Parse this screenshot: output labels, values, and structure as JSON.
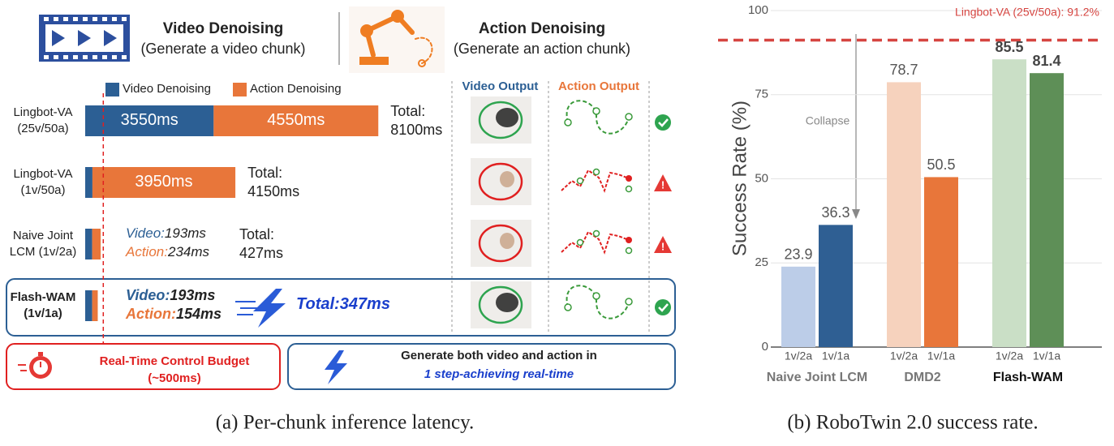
{
  "chart_data": [
    {
      "type": "latency",
      "title": "(a) Per-chunk inference latency.",
      "headers": [
        {
          "title": "Video Denoising",
          "subtitle": "(Generate a video chunk)"
        },
        {
          "title": "Action Denoising",
          "subtitle": "(Generate an action chunk)"
        }
      ],
      "categories": [
        "Lingbot-VA (25v/50a)",
        "Lingbot-VA (1v/50a)",
        "Naive Joint LCM (1v/2a)",
        "Flash-WAM (1v/1a)"
      ],
      "series": [
        {
          "name": "Video Denoising",
          "color": "#2c5f94",
          "inline_label": "Video:",
          "values": [
            3550,
            200,
            193,
            193
          ],
          "value_labels": [
            "3550ms",
            null,
            "193ms",
            "193ms"
          ]
        },
        {
          "name": "Action Denoising",
          "color": "#e8763a",
          "inline_label": "Action:",
          "values": [
            4550,
            3950,
            234,
            154
          ],
          "value_labels": [
            "4550ms",
            "3950ms",
            "234ms",
            "154ms"
          ]
        }
      ],
      "totals": [
        {
          "value": 8100,
          "label": "Total: 8100ms"
        },
        {
          "value": 4150,
          "label": "Total: 4150ms"
        },
        {
          "value": 427,
          "label": "Total: 427ms"
        },
        {
          "value": 347,
          "label": "Total:347ms"
        }
      ],
      "output_columns": [
        "Video Output",
        "Action Output"
      ],
      "status": [
        "success",
        "failure",
        "failure",
        "success"
      ],
      "budget": {
        "value": 500,
        "label": "Real-Time Control Budget",
        "sublabel": "(~500ms)"
      },
      "note": [
        "Generate both video and action in",
        "1 step-achieving real-time"
      ]
    },
    {
      "type": "bar",
      "title": "(b) RoboTwin 2.0 success rate.",
      "ylabel": "Success Rate (%)",
      "categories": [
        "1v/2a",
        "1v/1a",
        "1v/2a",
        "1v/1a",
        "1v/2a",
        "1v/1a"
      ],
      "groups": [
        "Naive Joint LCM",
        "DMD2",
        "Flash-WAM"
      ],
      "values": [
        23.9,
        36.3,
        78.7,
        50.5,
        85.5,
        81.4
      ],
      "colors": [
        "#bccde8",
        "#2f5f93",
        "#f6d2bd",
        "#e8763a",
        "#cadfc6",
        "#5e8f57"
      ],
      "ylim": [
        0,
        100
      ],
      "yticks": [
        0,
        25,
        50,
        75,
        100
      ],
      "grid": true,
      "reference": {
        "value": 91.2,
        "label": "Lingbot-VA (25v/50a): 91.2%",
        "color": "#d64541"
      },
      "annotation": "Collapse"
    }
  ]
}
